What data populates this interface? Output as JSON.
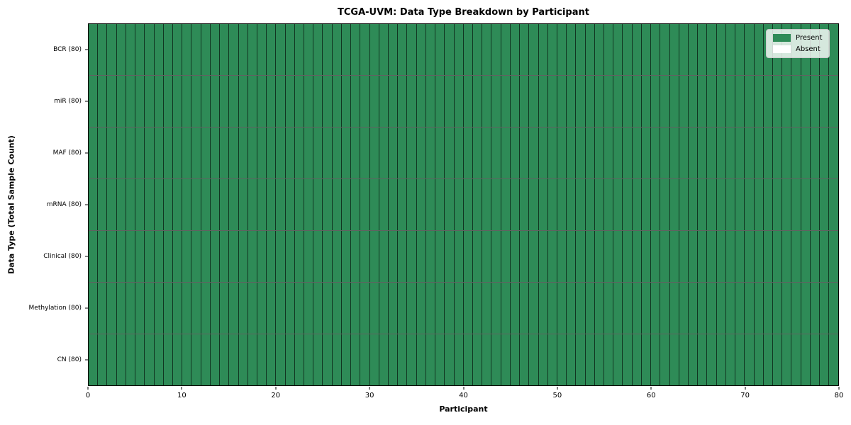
{
  "chart_data": {
    "type": "heatmap",
    "title": "TCGA-UVM: Data Type Breakdown by Participant",
    "xlabel": "Participant",
    "ylabel": "Data Type (Total Sample Count)",
    "xlim": [
      0,
      80
    ],
    "x_ticks": [
      0,
      10,
      20,
      30,
      40,
      50,
      60,
      70,
      80
    ],
    "n_participants": 80,
    "n_rows": 7,
    "rows": [
      {
        "label": "BCR (80)",
        "data_type": "BCR",
        "total_samples": 80,
        "present_count": 80,
        "absent_count": 0
      },
      {
        "label": "miR (80)",
        "data_type": "miR",
        "total_samples": 80,
        "present_count": 80,
        "absent_count": 0
      },
      {
        "label": "MAF (80)",
        "data_type": "MAF",
        "total_samples": 80,
        "present_count": 80,
        "absent_count": 0
      },
      {
        "label": "mRNA (80)",
        "data_type": "mRNA",
        "total_samples": 80,
        "present_count": 80,
        "absent_count": 0
      },
      {
        "label": "Clinical (80)",
        "data_type": "Clinical",
        "total_samples": 80,
        "present_count": 80,
        "absent_count": 0
      },
      {
        "label": "Methylation (80)",
        "data_type": "Methylation",
        "total_samples": 80,
        "present_count": 80,
        "absent_count": 0
      },
      {
        "label": "CN (80)",
        "data_type": "CN",
        "total_samples": 80,
        "present_count": 80,
        "absent_count": 0
      }
    ],
    "cell_values": "all 7x80 cells = 1 (Present)",
    "value_map": {
      "1": "Present",
      "0": "Absent"
    },
    "legend": [
      {
        "label": "Present",
        "color": "#2e8b57"
      },
      {
        "label": "Absent",
        "color": "#ffffff"
      }
    ],
    "legend_position": "upper right",
    "grid": true,
    "colors": {
      "present": "#2e8b57",
      "absent": "#ffffff",
      "cell_border": "rgba(0,0,0,0.62)",
      "axis": "#000000",
      "background": "#ffffff"
    }
  }
}
